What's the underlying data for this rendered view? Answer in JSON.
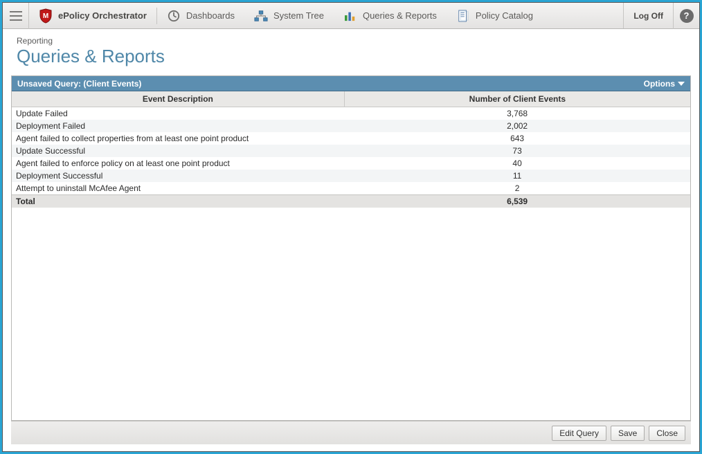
{
  "topbar": {
    "brand": "ePolicy Orchestrator",
    "items": [
      {
        "label": "Dashboards"
      },
      {
        "label": "System Tree"
      },
      {
        "label": "Queries & Reports"
      },
      {
        "label": "Policy Catalog"
      }
    ],
    "logoff": "Log Off"
  },
  "breadcrumb": "Reporting",
  "page_title": "Queries & Reports",
  "panel": {
    "title": "Unsaved Query: (Client Events)",
    "options_label": "Options",
    "columns": [
      "Event Description",
      "Number of Client Events"
    ],
    "rows": [
      {
        "desc": "Update Failed",
        "count": "3,768"
      },
      {
        "desc": "Deployment Failed",
        "count": "2,002"
      },
      {
        "desc": "Agent failed to collect properties from at least one point product",
        "count": "643"
      },
      {
        "desc": "Update Successful",
        "count": "73"
      },
      {
        "desc": "Agent failed to enforce policy on at least one point product",
        "count": "40"
      },
      {
        "desc": "Deployment Successful",
        "count": "11"
      },
      {
        "desc": "Attempt to uninstall McAfee Agent",
        "count": "2"
      }
    ],
    "total_label": "Total",
    "total_value": "6,539"
  },
  "footer": {
    "edit": "Edit Query",
    "save": "Save",
    "close": "Close"
  },
  "style": {
    "panel_header_bg": "#5c8eb0",
    "page_title_color": "#4f87a8",
    "alt_row_bg": "#f3f5f6",
    "total_row_bg": "#e4e3e1"
  }
}
